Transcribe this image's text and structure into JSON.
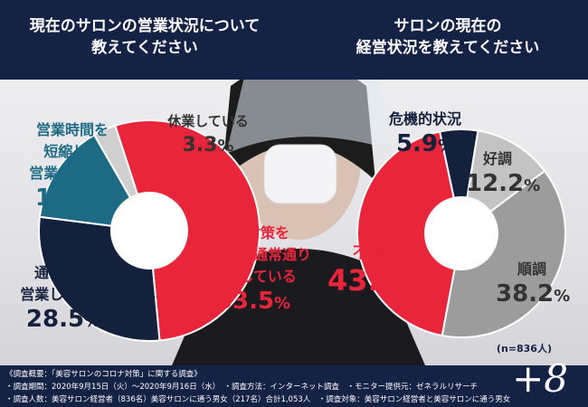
{
  "headers": {
    "left": "現在のサロンの営業状況について\n教えてください",
    "right": "サロンの現在の\n経営状況を教えてください"
  },
  "chart_data": [
    {
      "type": "pie",
      "title": "現在のサロンの営業状況について教えてください",
      "slices": [
        {
          "label": "感染対策をしながら通常通り営業している",
          "value": 53.5,
          "color": "#e8253a"
        },
        {
          "label": "通常通り営業している",
          "value": 28.5,
          "color": "#14213d"
        },
        {
          "label": "営業時間を短縮して営業している",
          "value": 14.7,
          "color": "#1d6a84"
        },
        {
          "label": "休業している",
          "value": 3.3,
          "color": "#cfcfcf"
        }
      ]
    },
    {
      "type": "pie",
      "title": "サロンの現在の経営状況を教えてください",
      "slices": [
        {
          "label": "危機的状況",
          "value": 5.9,
          "color": "#14213d"
        },
        {
          "label": "好調",
          "value": 12.2,
          "color": "#c3c3c3"
        },
        {
          "label": "順調",
          "value": 38.2,
          "color": "#9c9c9c"
        },
        {
          "label": "不調",
          "value": 43.7,
          "color": "#e8253a"
        }
      ]
    }
  ],
  "labels": {
    "l1": {
      "text": "感染対策を\nしながら通常通り\n営業している",
      "pct": "53.5"
    },
    "l2": {
      "text": "通常通り\n営業している",
      "pct": "28.5"
    },
    "l3": {
      "text": "営業時間を\n短縮して\n営業している",
      "pct": "14.7"
    },
    "l4": {
      "text": "休業している",
      "pct": "3.3"
    },
    "r1": {
      "text": "危機的状況",
      "pct": "5.9"
    },
    "r2": {
      "text": "好調",
      "pct": "12.2"
    },
    "r3": {
      "text": "順調",
      "pct": "38.2"
    },
    "r4": {
      "text": "不調",
      "pct": "43.7"
    },
    "unit": "%"
  },
  "note": "(n=836人)",
  "footer": {
    "line1": "《調査概要：「美容サロンのコロナ対策」に関する調査》",
    "line2": "・調査期間：2020年9月15日（火）～2020年9月16日（水）　・調査方法：インターネット調査　・モニター提供元：ゼネラルリサーチ",
    "line3": "・調査人数：美容サロン経営者（836名）美容サロンに通う男女（217名）合計1,053人　・調査対象：美容サロン経営者と美容サロンに通う男女"
  },
  "logo": "+8"
}
